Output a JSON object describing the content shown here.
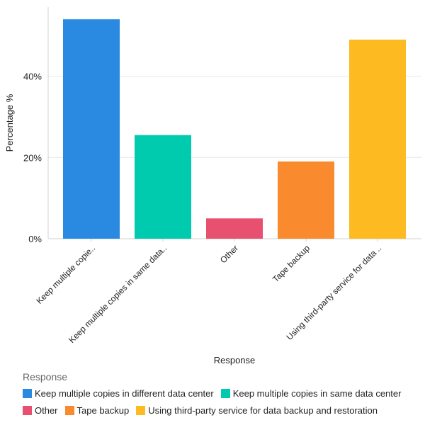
{
  "chart_data": {
    "type": "bar",
    "xlabel": "Response",
    "ylabel": "Percentage %",
    "ylim": [
      0,
      57
    ],
    "yticks": [
      0,
      20,
      40
    ],
    "ytick_suffix": "%",
    "grid": true,
    "legend_title": "Response",
    "legend_placement": "bottom",
    "categories": [
      "Keep multiple copies in different data center",
      "Keep multiple copies in same data center",
      "Other",
      "Tape backup",
      "Using third-party service for data backup and restoration"
    ],
    "tick_labels": [
      "Keep multiple copie..",
      "Keep multiple copies in same data..",
      "Other",
      "Tape backup",
      "Using third-party service for data .."
    ],
    "values": [
      54,
      25.5,
      5,
      19,
      49
    ],
    "colors": [
      "#2a8ae2",
      "#00cbaf",
      "#e8506f",
      "#f98a2e",
      "#fdbb21"
    ]
  }
}
